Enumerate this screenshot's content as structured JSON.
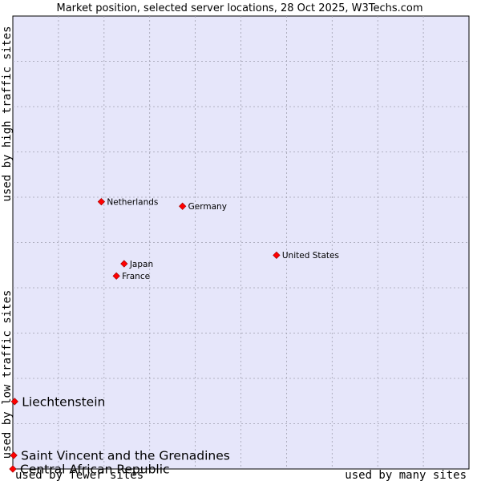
{
  "chart_data": {
    "type": "scatter",
    "title": "Market position, selected server locations, 28 Oct 2025, W3Techs.com",
    "xlabel_low": "used by fewer sites",
    "xlabel_high": "used by many sites",
    "ylabel_low": "used by low traffic sites",
    "ylabel_high": "used by high traffic sites",
    "xlim": [
      0,
      100
    ],
    "ylim": [
      0,
      100
    ],
    "grid": true,
    "points": [
      {
        "label": "Netherlands",
        "x": 19.4,
        "y": 59.0,
        "highlight": false
      },
      {
        "label": "Germany",
        "x": 37.2,
        "y": 58.0,
        "highlight": false
      },
      {
        "label": "United States",
        "x": 57.8,
        "y": 47.2,
        "highlight": false
      },
      {
        "label": "Japan",
        "x": 24.4,
        "y": 45.3,
        "highlight": false
      },
      {
        "label": "France",
        "x": 22.7,
        "y": 42.6,
        "highlight": false
      },
      {
        "label": "Liechtenstein",
        "x": 0.4,
        "y": 14.9,
        "highlight": true
      },
      {
        "label": "Saint Vincent and the Grenadines",
        "x": 0.2,
        "y": 3.0,
        "highlight": true
      },
      {
        "label": "Central African Republic",
        "x": 0.0,
        "y": 0.0,
        "highlight": true
      }
    ]
  },
  "colors": {
    "plot_bg": "#e6e6fa",
    "grid": "#a0a0b0",
    "marker": "#ff0000",
    "marker_edge": "#990000"
  }
}
